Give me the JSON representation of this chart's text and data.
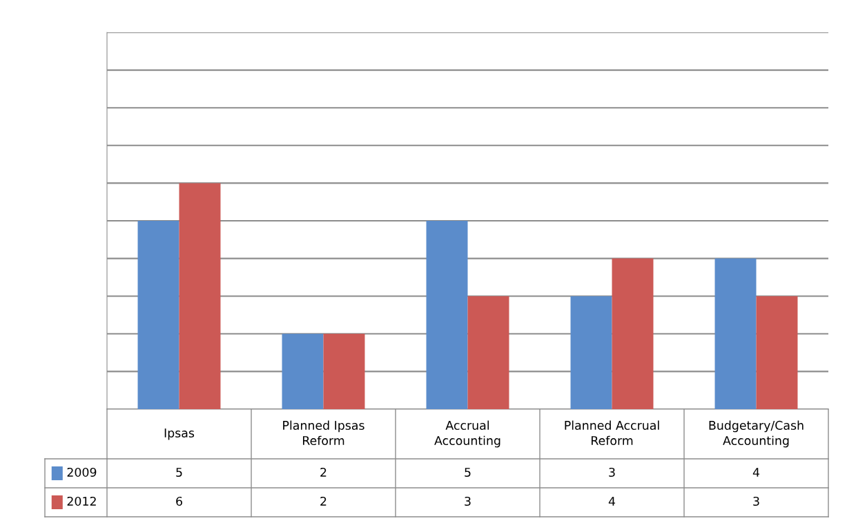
{
  "chart_data": {
    "type": "bar",
    "categories": [
      "Ipsas",
      "Planned Ipsas\nReform",
      "Accrual\nAccounting",
      "Planned Accrual\nReform",
      "Budgetary/Cash\nAccounting"
    ],
    "series": [
      {
        "name": "2009",
        "color": "#5b8ccb",
        "values": [
          5,
          2,
          5,
          3,
          4
        ]
      },
      {
        "name": "2012",
        "color": "#cc5955",
        "values": [
          6,
          2,
          3,
          4,
          3
        ]
      }
    ],
    "ylim": [
      0,
      10
    ],
    "yticks": [
      {
        "value": 0,
        "label": null
      },
      {
        "value": 1,
        "label": null
      },
      {
        "value": 2,
        "label": null
      },
      {
        "value": 3,
        "label": null
      },
      {
        "value": 4,
        "label": null
      },
      {
        "value": 5,
        "label": null
      },
      {
        "value": 6,
        "label": null
      },
      {
        "value": 7,
        "label": null
      },
      {
        "value": 8,
        "label": null
      },
      {
        "value": 9,
        "label": null
      },
      {
        "value": 10,
        "label": null
      }
    ],
    "grid": "y",
    "data_labels": true,
    "legend": "bottom left"
  }
}
